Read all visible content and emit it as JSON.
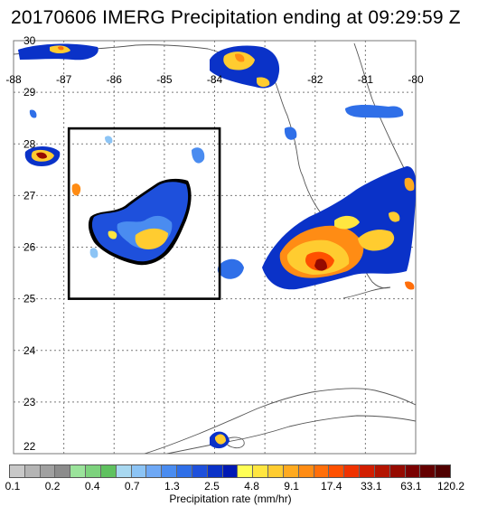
{
  "title": "20170606 IMERG Precipitation ending at 09:29:59 Z",
  "map": {
    "lon_range": [
      -88,
      -80
    ],
    "lat_range": [
      22,
      30
    ],
    "lon_ticks": [
      -88,
      -87,
      -86,
      -85,
      -84,
      -82,
      -81,
      -80
    ],
    "lon_tick_labels": [
      "-88",
      "-87",
      "-86",
      "-85",
      "-84",
      "-82",
      "-81",
      "-80"
    ],
    "lat_ticks": [
      23,
      24,
      25,
      26,
      27,
      28,
      29,
      30
    ],
    "lat_tick_labels": [
      "23",
      "24",
      "25",
      "26",
      "27",
      "28",
      "29",
      "30"
    ],
    "bottom_lat_label": "22",
    "grid": "dotted",
    "highlight_box": {
      "lon": [
        -86.9,
        -83.9
      ],
      "lat": [
        25.0,
        28.3
      ]
    }
  },
  "colorbar": {
    "title": "Precipitation rate (mm/hr)",
    "labels": [
      "0.1",
      "0.2",
      "0.4",
      "0.7",
      "1.3",
      "2.5",
      "4.8",
      "9.1",
      "17.4",
      "33.1",
      "63.1",
      "120.2"
    ],
    "colors": [
      "#c8c8c8",
      "#b4b4b4",
      "#a0a0a0",
      "#8c8c8c",
      "#9be39b",
      "#7dd27d",
      "#5fc15f",
      "#a8d8f0",
      "#8cc4f5",
      "#6ea8f5",
      "#4a8cf0",
      "#2f6fe8",
      "#1e50dc",
      "#0a32c8",
      "#0019b4",
      "#ffff55",
      "#ffe640",
      "#ffcc30",
      "#ffaa20",
      "#ff8c14",
      "#ff6e0a",
      "#ff5000",
      "#f03200",
      "#d21e00",
      "#b41400",
      "#960a00",
      "#7a0000",
      "#640000",
      "#500000"
    ]
  }
}
